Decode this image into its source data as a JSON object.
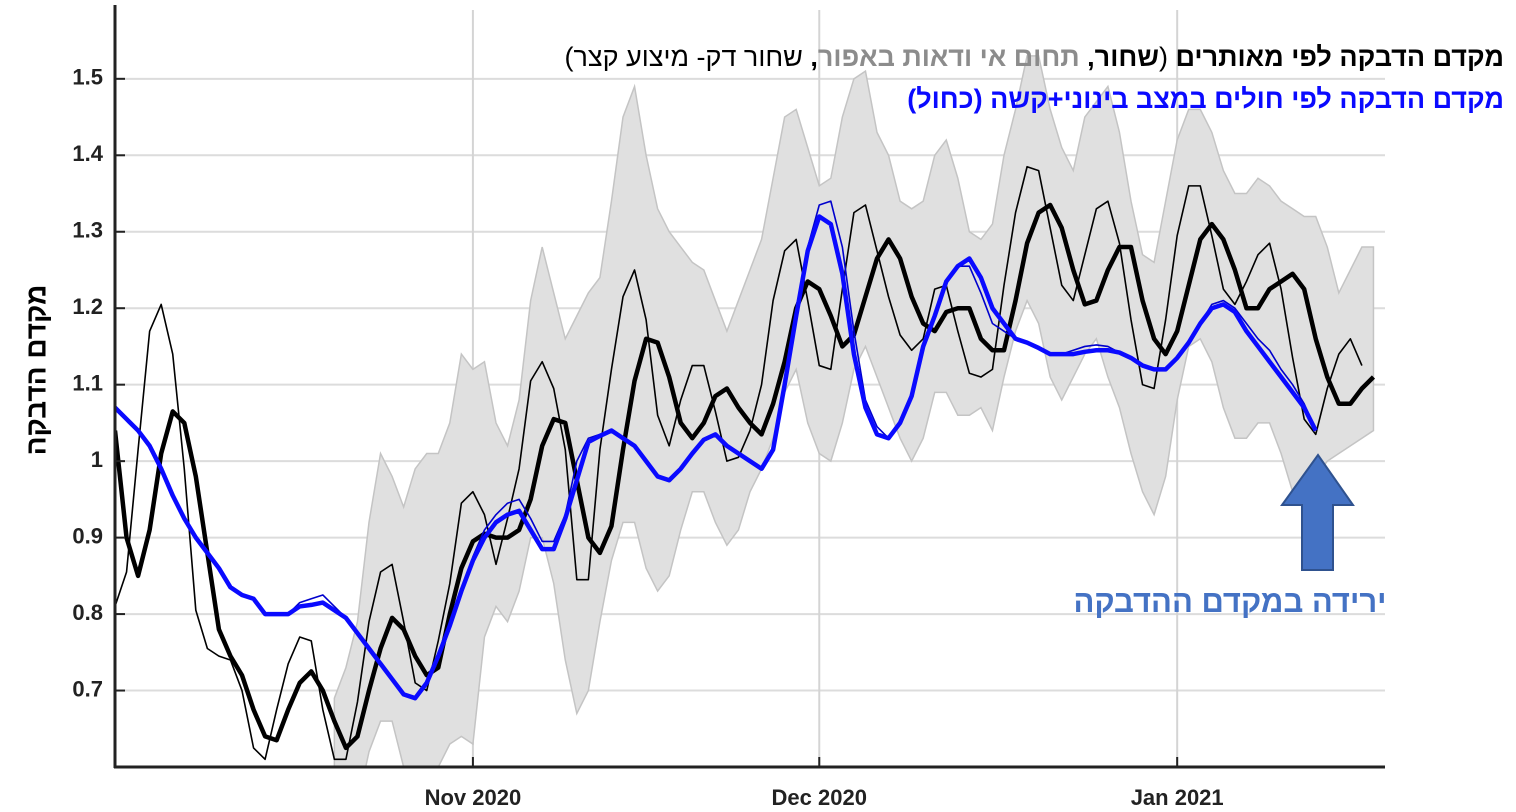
{
  "chart_data": {
    "type": "line",
    "title": [
      "מקדם הדבקה  לפי מאותרים",
      "(",
      "שחור",
      ",",
      "תחום אי ודאות באפור",
      ",",
      "שחור דק- מיצוע קצר)"
    ],
    "subtitle": "מקדם הדבקה לפי חולים במצב בינוני+קשה (כחול)",
    "ylabel": "מקדם הדבקה",
    "annotation": "ירידה במקדם ההדבקה",
    "grid": true,
    "xlim": [
      0,
      110
    ],
    "xticks": [
      {
        "value": 31,
        "label": "Nov 2020"
      },
      {
        "value": 61,
        "label": "Dec 2020"
      },
      {
        "value": 92,
        "label": "Jan 2021"
      }
    ],
    "ylim": [
      0.6,
      1.59
    ],
    "yticks": [
      0.7,
      0.8,
      0.9,
      1,
      1.1,
      1.2,
      1.3,
      1.4,
      1.5
    ],
    "x": [
      0,
      1,
      2,
      3,
      4,
      5,
      6,
      7,
      8,
      9,
      10,
      11,
      12,
      13,
      14,
      15,
      16,
      17,
      18,
      19,
      20,
      21,
      22,
      23,
      24,
      25,
      26,
      27,
      28,
      29,
      30,
      31,
      32,
      33,
      34,
      35,
      36,
      37,
      38,
      39,
      40,
      41,
      42,
      43,
      44,
      45,
      46,
      47,
      48,
      49,
      50,
      51,
      52,
      53,
      54,
      55,
      56,
      57,
      58,
      59,
      60,
      61,
      62,
      63,
      64,
      65,
      66,
      67,
      68,
      69,
      70,
      71,
      72,
      73,
      74,
      75,
      76,
      77,
      78,
      79,
      80,
      81,
      82,
      83,
      84,
      85,
      86,
      87,
      88,
      89,
      90,
      91,
      92,
      93,
      94,
      95,
      96,
      97,
      98,
      99,
      100,
      101,
      102,
      103,
      104,
      105,
      106,
      107,
      108,
      109
    ],
    "band": {
      "color": "#e0e0e0",
      "upper": [
        null,
        null,
        null,
        null,
        null,
        null,
        null,
        null,
        null,
        null,
        null,
        null,
        null,
        null,
        null,
        null,
        null,
        null,
        null,
        0.69,
        0.73,
        0.79,
        0.92,
        1.01,
        0.98,
        0.94,
        0.99,
        1.01,
        1.01,
        1.05,
        1.14,
        1.12,
        1.13,
        1.05,
        1.02,
        1.08,
        1.21,
        1.28,
        1.22,
        1.16,
        1.19,
        1.22,
        1.24,
        1.34,
        1.45,
        1.49,
        1.4,
        1.33,
        1.3,
        1.28,
        1.26,
        1.25,
        1.21,
        1.17,
        1.21,
        1.25,
        1.29,
        1.37,
        1.45,
        1.46,
        1.41,
        1.36,
        1.37,
        1.45,
        1.5,
        1.51,
        1.43,
        1.4,
        1.34,
        1.33,
        1.34,
        1.4,
        1.42,
        1.37,
        1.3,
        1.29,
        1.31,
        1.4,
        1.46,
        1.53,
        1.53,
        1.46,
        1.41,
        1.38,
        1.45,
        1.47,
        1.49,
        1.43,
        1.34,
        1.27,
        1.26,
        1.34,
        1.42,
        1.46,
        1.46,
        1.43,
        1.38,
        1.35,
        1.35,
        1.37,
        1.36,
        1.34,
        1.33,
        1.32,
        1.32,
        1.28,
        1.22,
        1.25,
        1.28,
        1.28
      ],
      "lower": [
        null,
        null,
        null,
        null,
        null,
        null,
        null,
        null,
        null,
        null,
        null,
        null,
        null,
        null,
        null,
        null,
        null,
        null,
        null,
        0.55,
        0.55,
        0.55,
        0.62,
        0.66,
        0.66,
        0.6,
        0.55,
        0.55,
        0.6,
        0.63,
        0.64,
        0.63,
        0.77,
        0.81,
        0.79,
        0.83,
        0.9,
        0.9,
        0.84,
        0.74,
        0.67,
        0.7,
        0.79,
        0.87,
        0.92,
        0.92,
        0.86,
        0.83,
        0.85,
        0.91,
        0.96,
        0.96,
        0.92,
        0.89,
        0.91,
        0.96,
        0.99,
        1.03,
        1.09,
        1.12,
        1.05,
        1.01,
        1.0,
        1.05,
        1.12,
        1.15,
        1.11,
        1.07,
        1.03,
        1.0,
        1.03,
        1.09,
        1.09,
        1.06,
        1.06,
        1.07,
        1.04,
        1.11,
        1.17,
        1.21,
        1.18,
        1.11,
        1.08,
        1.11,
        1.14,
        1.16,
        1.11,
        1.07,
        1.01,
        0.96,
        0.93,
        0.98,
        1.08,
        1.15,
        1.16,
        1.13,
        1.07,
        1.03,
        1.03,
        1.05,
        1.05,
        1.01,
        0.96,
        0.94,
        0.98,
        1.0,
        1.01,
        1.02,
        1.03,
        1.04
      ]
    },
    "series": [
      {
        "color": "#000000",
        "weight": "thin",
        "values": [
          0.81,
          0.855,
          1.015,
          1.17,
          1.205,
          1.14,
          0.99,
          0.805,
          0.755,
          0.745,
          0.74,
          0.7,
          0.625,
          0.61,
          0.675,
          0.735,
          0.77,
          0.765,
          0.675,
          0.61,
          0.61,
          0.685,
          0.79,
          0.855,
          0.865,
          0.79,
          0.71,
          0.7,
          0.765,
          0.84,
          0.945,
          0.96,
          0.93,
          0.865,
          0.925,
          0.99,
          1.105,
          1.13,
          1.095,
          1.015,
          0.845,
          0.845,
          1.015,
          1.12,
          1.215,
          1.25,
          1.185,
          1.06,
          1.02,
          1.08,
          1.125,
          1.125,
          1.065,
          1.0,
          1.005,
          1.04,
          1.1,
          1.21,
          1.275,
          1.29,
          1.21,
          1.125,
          1.12,
          1.225,
          1.325,
          1.335,
          1.275,
          1.215,
          1.165,
          1.145,
          1.16,
          1.225,
          1.23,
          1.17,
          1.115,
          1.11,
          1.12,
          1.23,
          1.325,
          1.385,
          1.38,
          1.305,
          1.23,
          1.21,
          1.27,
          1.33,
          1.34,
          1.285,
          1.185,
          1.1,
          1.095,
          1.185,
          1.295,
          1.36,
          1.36,
          1.295,
          1.225,
          1.205,
          1.235,
          1.27,
          1.285,
          1.225,
          1.135,
          1.055,
          1.035,
          1.095,
          1.14,
          1.16,
          1.125,
          null
        ]
      },
      {
        "color": "#000000",
        "weight": "thick",
        "values": [
          1.04,
          0.9,
          0.85,
          0.91,
          1.01,
          1.065,
          1.05,
          0.98,
          0.88,
          0.78,
          0.745,
          0.72,
          0.675,
          0.64,
          0.635,
          0.675,
          0.71,
          0.725,
          0.7,
          0.66,
          0.625,
          0.64,
          0.7,
          0.755,
          0.795,
          0.78,
          0.745,
          0.72,
          0.73,
          0.8,
          0.86,
          0.895,
          0.905,
          0.9,
          0.9,
          0.91,
          0.95,
          1.02,
          1.055,
          1.05,
          0.975,
          0.9,
          0.88,
          0.915,
          1.015,
          1.105,
          1.16,
          1.155,
          1.11,
          1.05,
          1.03,
          1.05,
          1.085,
          1.095,
          1.07,
          1.05,
          1.035,
          1.075,
          1.13,
          1.2,
          1.235,
          1.225,
          1.19,
          1.15,
          1.165,
          1.215,
          1.265,
          1.29,
          1.265,
          1.215,
          1.18,
          1.17,
          1.195,
          1.2,
          1.2,
          1.16,
          1.145,
          1.145,
          1.21,
          1.285,
          1.325,
          1.335,
          1.305,
          1.25,
          1.205,
          1.21,
          1.25,
          1.28,
          1.28,
          1.21,
          1.16,
          1.14,
          1.17,
          1.23,
          1.29,
          1.31,
          1.29,
          1.25,
          1.2,
          1.2,
          1.225,
          1.235,
          1.245,
          1.225,
          1.16,
          1.11,
          1.075,
          1.075,
          1.095,
          1.11
        ]
      },
      {
        "color": "#0000cc",
        "weight": "thin",
        "values": [
          1.07,
          1.055,
          1.04,
          1.02,
          0.99,
          0.955,
          0.925,
          0.9,
          0.88,
          0.86,
          0.835,
          0.825,
          0.82,
          0.8,
          0.8,
          0.8,
          0.815,
          0.82,
          0.825,
          0.81,
          0.795,
          0.775,
          0.755,
          0.735,
          0.715,
          0.695,
          0.69,
          0.71,
          0.745,
          0.785,
          0.83,
          0.875,
          0.91,
          0.93,
          0.945,
          0.95,
          0.925,
          0.895,
          0.895,
          0.93,
          1.0,
          1.03,
          1.035,
          1.04,
          1.03,
          1.02,
          1.0,
          0.98,
          0.975,
          0.99,
          1.01,
          1.028,
          1.035,
          1.02,
          1.01,
          1.0,
          0.99,
          1.015,
          1.1,
          1.19,
          1.28,
          1.335,
          1.34,
          1.28,
          1.17,
          1.08,
          1.045,
          1.03,
          1.05,
          1.085,
          1.15,
          1.19,
          1.235,
          1.255,
          1.255,
          1.22,
          1.18,
          1.17,
          1.16,
          1.155,
          1.148,
          1.14,
          1.14,
          1.145,
          1.15,
          1.152,
          1.15,
          1.142,
          1.135,
          1.125,
          1.12,
          1.12,
          1.135,
          1.155,
          1.18,
          1.205,
          1.21,
          1.2,
          1.18,
          1.16,
          1.145,
          1.12,
          1.1,
          1.075,
          1.04,
          null,
          null,
          null,
          null,
          null
        ]
      },
      {
        "color": "#0a0aff",
        "weight": "thick",
        "values": [
          1.07,
          1.055,
          1.04,
          1.02,
          0.99,
          0.955,
          0.925,
          0.9,
          0.88,
          0.86,
          0.835,
          0.825,
          0.82,
          0.8,
          0.8,
          0.8,
          0.81,
          0.812,
          0.815,
          0.805,
          0.795,
          0.775,
          0.755,
          0.735,
          0.715,
          0.695,
          0.69,
          0.71,
          0.745,
          0.785,
          0.83,
          0.87,
          0.9,
          0.92,
          0.93,
          0.935,
          0.91,
          0.885,
          0.885,
          0.925,
          0.975,
          1.025,
          1.033,
          1.04,
          1.03,
          1.02,
          1.0,
          0.98,
          0.975,
          0.99,
          1.01,
          1.028,
          1.035,
          1.02,
          1.01,
          1.0,
          0.99,
          1.015,
          1.1,
          1.19,
          1.275,
          1.32,
          1.31,
          1.245,
          1.14,
          1.07,
          1.035,
          1.03,
          1.05,
          1.085,
          1.15,
          1.19,
          1.235,
          1.255,
          1.265,
          1.24,
          1.2,
          1.18,
          1.16,
          1.155,
          1.148,
          1.14,
          1.14,
          1.14,
          1.143,
          1.145,
          1.145,
          1.142,
          1.135,
          1.125,
          1.12,
          1.12,
          1.135,
          1.155,
          1.18,
          1.2,
          1.205,
          1.195,
          1.17,
          1.15,
          1.13,
          1.11,
          1.09,
          1.07,
          1.04,
          null,
          null,
          null,
          null,
          null
        ]
      }
    ]
  }
}
